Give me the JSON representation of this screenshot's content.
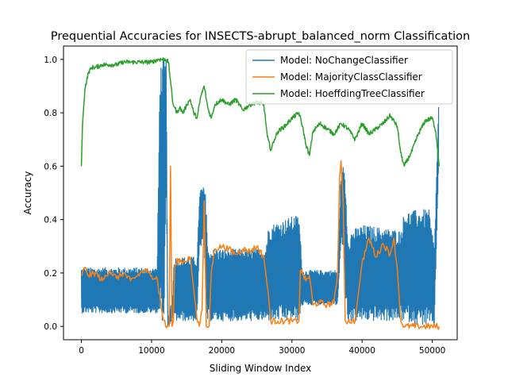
{
  "chart_data": {
    "type": "line",
    "title": "Prequential Accuracies for INSECTS-abrupt_balanced_norm Classification",
    "xlabel": "Sliding Window Index",
    "ylabel": "Accuracy",
    "xlim": [
      -2550,
      53550
    ],
    "ylim": [
      -0.05,
      1.05
    ],
    "xticks": [
      0,
      10000,
      20000,
      30000,
      40000,
      50000
    ],
    "xtick_labels": [
      "0",
      "10000",
      "20000",
      "30000",
      "40000",
      "50000"
    ],
    "yticks": [
      0.0,
      0.2,
      0.4,
      0.6,
      0.8,
      1.0
    ],
    "ytick_labels": [
      "0.0",
      "0.2",
      "0.4",
      "0.6",
      "0.8",
      "1.0"
    ],
    "grid": false,
    "legend_position": "top-right",
    "series": [
      {
        "name": "Model: NoChangeClassifier",
        "color": "#1f77b4",
        "style": "dense-oscillating band",
        "envelope": {
          "x": [
            0,
            10800,
            11200,
            11800,
            12100,
            12300,
            13000,
            13200,
            14000,
            16500,
            16800,
            17000,
            17500,
            17800,
            18000,
            18500,
            26200,
            26700,
            31000,
            31500,
            36500,
            37000,
            37300,
            37600,
            38000,
            38500,
            40000,
            45500,
            46000,
            49500,
            50300,
            50900
          ],
          "high": [
            0.22,
            0.22,
            0.99,
            1.0,
            1.0,
            0.02,
            0.12,
            0.26,
            0.26,
            0.26,
            0.48,
            0.52,
            0.52,
            0.48,
            0.28,
            0.29,
            0.29,
            0.38,
            0.42,
            0.21,
            0.21,
            0.58,
            0.6,
            0.56,
            0.32,
            0.36,
            0.38,
            0.36,
            0.43,
            0.44,
            0.3,
            0.83
          ],
          "low": [
            0.05,
            0.05,
            0.02,
            0.02,
            0.55,
            0.0,
            0.02,
            0.02,
            0.02,
            0.02,
            0.28,
            0.3,
            0.3,
            0.02,
            0.02,
            0.02,
            0.02,
            0.02,
            0.02,
            0.08,
            0.08,
            0.3,
            0.3,
            0.1,
            0.02,
            0.02,
            0.02,
            0.02,
            0.02,
            0.0,
            0.0,
            0.6
          ]
        }
      },
      {
        "name": "Model: MajorityClassClassifier",
        "color": "#ff7f0e",
        "x": [
          0,
          500,
          1000,
          2000,
          3000,
          4000,
          5000,
          6000,
          7000,
          8000,
          9000,
          10000,
          10800,
          11500,
          12000,
          12500,
          12700,
          12900,
          13100,
          13300,
          13800,
          14500,
          15500,
          16500,
          16800,
          17200,
          17500,
          17800,
          18200,
          18500,
          19000,
          20000,
          21000,
          22000,
          23000,
          24000,
          25000,
          26000,
          26500,
          27000,
          28000,
          29000,
          30000,
          31000,
          31200,
          31500,
          32000,
          32500,
          33000,
          34000,
          35000,
          36000,
          36500,
          36800,
          37000,
          37300,
          37600,
          38000,
          39000,
          40000,
          41000,
          42000,
          43000,
          44000,
          44500,
          45000,
          45500,
          46000,
          48000,
          50000,
          51000
        ],
        "values": [
          0.19,
          0.22,
          0.19,
          0.2,
          0.17,
          0.21,
          0.18,
          0.2,
          0.17,
          0.19,
          0.21,
          0.19,
          0.18,
          0.05,
          0.0,
          0.0,
          0.6,
          0.0,
          0.02,
          0.22,
          0.25,
          0.24,
          0.26,
          0.02,
          0.0,
          0.06,
          0.47,
          0.0,
          0.0,
          0.2,
          0.29,
          0.3,
          0.29,
          0.27,
          0.29,
          0.28,
          0.3,
          0.26,
          0.15,
          0.02,
          0.02,
          0.02,
          0.02,
          0.02,
          0.21,
          0.2,
          0.17,
          0.19,
          0.08,
          0.09,
          0.08,
          0.09,
          0.2,
          0.56,
          0.62,
          0.47,
          0.02,
          0.02,
          0.02,
          0.24,
          0.33,
          0.26,
          0.31,
          0.27,
          0.33,
          0.22,
          0.02,
          0.0,
          0.0,
          0.0,
          0.0
        ]
      },
      {
        "name": "Model: HoeffdingTreeClassifier",
        "color": "#2ca02c",
        "x": [
          0,
          150,
          500,
          1000,
          1500,
          2000,
          3000,
          4000,
          5000,
          6000,
          7000,
          8000,
          9000,
          10000,
          11000,
          12000,
          12400,
          12700,
          13000,
          13300,
          13600,
          14000,
          14500,
          15000,
          15500,
          16000,
          16500,
          17000,
          17500,
          18000,
          18500,
          19000,
          20000,
          21000,
          22000,
          23000,
          24000,
          25000,
          26000,
          26500,
          27000,
          27500,
          28000,
          29000,
          30000,
          31000,
          31500,
          32000,
          32500,
          33000,
          34000,
          35000,
          36000,
          37000,
          38000,
          39000,
          40000,
          41000,
          42000,
          43000,
          44000,
          45000,
          45500,
          46000,
          47000,
          48000,
          49000,
          50000,
          50500,
          51000
        ],
        "values": [
          0.6,
          0.75,
          0.89,
          0.95,
          0.97,
          0.97,
          0.98,
          0.98,
          0.98,
          0.99,
          0.99,
          0.99,
          0.99,
          0.99,
          1.0,
          1.0,
          0.99,
          0.92,
          0.84,
          0.82,
          0.8,
          0.82,
          0.8,
          0.83,
          0.85,
          0.8,
          0.78,
          0.86,
          0.9,
          0.82,
          0.78,
          0.83,
          0.85,
          0.83,
          0.85,
          0.81,
          0.83,
          0.84,
          0.83,
          0.71,
          0.66,
          0.7,
          0.73,
          0.75,
          0.78,
          0.8,
          0.75,
          0.68,
          0.64,
          0.73,
          0.76,
          0.74,
          0.72,
          0.76,
          0.74,
          0.7,
          0.76,
          0.72,
          0.74,
          0.76,
          0.79,
          0.75,
          0.65,
          0.6,
          0.65,
          0.72,
          0.77,
          0.78,
          0.73,
          0.6
        ]
      }
    ]
  }
}
